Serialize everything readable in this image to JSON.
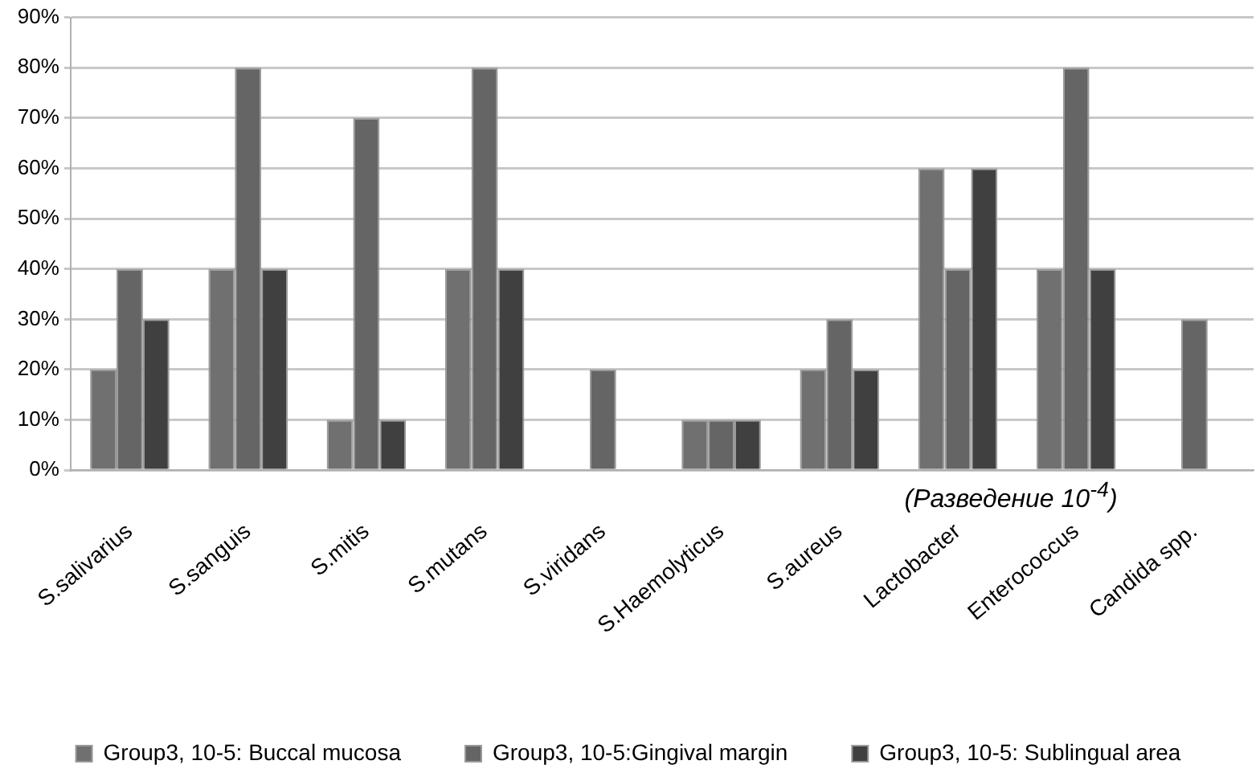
{
  "chart_data": {
    "type": "bar",
    "categories": [
      "S.salivarius",
      "S.sanguis",
      "S.mitis",
      "S.mutans",
      "S.viridans",
      "S.Haemolyticus",
      "S.aureus",
      "Lactobacter",
      "Enterococcus",
      "Candida spp."
    ],
    "series": [
      {
        "name": "Group3, 10-5: Buccal mucosa",
        "color": "#707070",
        "values": [
          20,
          40,
          10,
          40,
          0,
          10,
          20,
          60,
          40,
          0
        ]
      },
      {
        "name": "Group3, 10-5:Gingival margin",
        "color": "#656565",
        "values": [
          40,
          80,
          70,
          80,
          20,
          10,
          30,
          40,
          80,
          30
        ]
      },
      {
        "name": "Group3, 10-5: Sublingual area",
        "color": "#404040",
        "values": [
          30,
          40,
          10,
          40,
          0,
          10,
          20,
          60,
          40,
          0
        ]
      }
    ],
    "ylim": [
      0,
      90
    ],
    "yticks": [
      {
        "value": 0,
        "label": "0%"
      },
      {
        "value": 10,
        "label": "10%"
      },
      {
        "value": 20,
        "label": "20%"
      },
      {
        "value": 30,
        "label": "30%"
      },
      {
        "value": 40,
        "label": "40%"
      },
      {
        "value": 50,
        "label": "50%"
      },
      {
        "value": 60,
        "label": "60%"
      },
      {
        "value": 70,
        "label": "70%"
      },
      {
        "value": 80,
        "label": "80%"
      },
      {
        "value": 90,
        "label": "90%"
      }
    ],
    "grid": "y",
    "legend": "bottom",
    "annotations": [
      "(Разведение 10$^{-4}$)"
    ]
  }
}
